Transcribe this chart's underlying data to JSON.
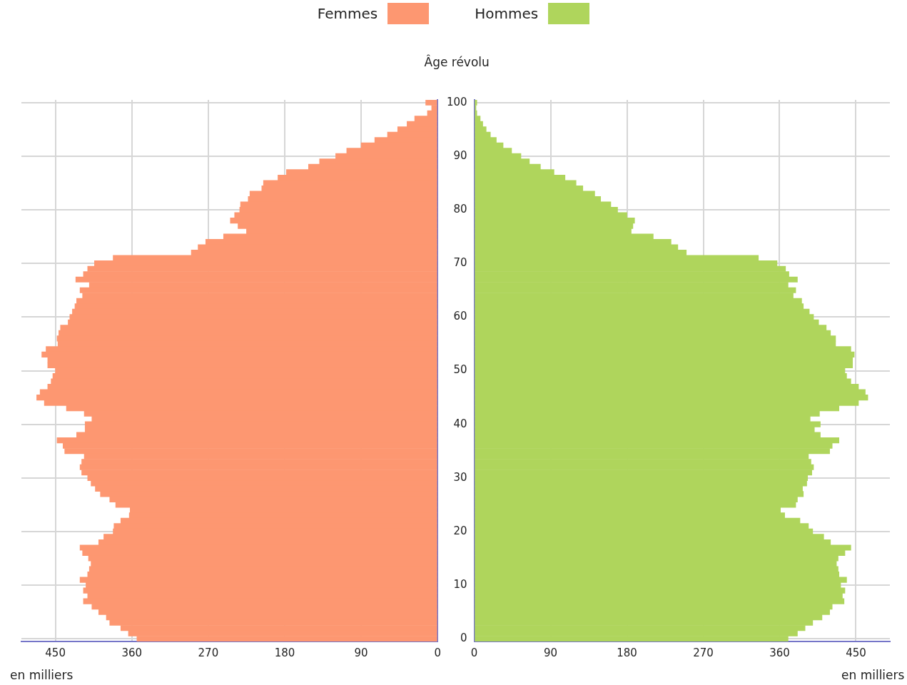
{
  "chart_data": [
    {
      "type": "bar",
      "orientation": "horizontal",
      "legend": "top",
      "xlabel": "en milliers",
      "tick_labels": "x",
      "grid": true,
      "categories": [
        "100",
        null,
        null,
        null,
        null,
        null,
        null,
        null,
        null,
        null,
        "90",
        null,
        null,
        null,
        null,
        null,
        null,
        null,
        null,
        null,
        "80",
        null,
        null,
        null,
        null,
        null,
        null,
        null,
        null,
        null,
        "70",
        null,
        null,
        null,
        null,
        null,
        null,
        null,
        null,
        null,
        "60",
        null,
        null,
        null,
        null,
        null,
        null,
        null,
        null,
        null,
        "50",
        null,
        null,
        null,
        null,
        null,
        null,
        null,
        null,
        null,
        "40",
        null,
        null,
        null,
        null,
        null,
        null,
        null,
        null,
        null,
        "30",
        null,
        null,
        null,
        null,
        null,
        null,
        null,
        null,
        null,
        "20",
        null,
        null,
        null,
        null,
        null,
        null,
        null,
        null,
        null,
        "10",
        null,
        null,
        null,
        null,
        null,
        null,
        null,
        null,
        null,
        "0"
      ],
      "xlim": [
        490,
        0
      ],
      "xticks": [
        450,
        360,
        270,
        180,
        90,
        0
      ],
      "series": [
        {
          "name": "Femmes",
          "color": "#fd9771",
          "values": [
            14,
            7,
            12,
            27,
            36,
            47,
            59,
            74,
            90,
            107,
            120,
            139,
            152,
            178,
            188,
            205,
            207,
            221,
            223,
            232,
            233,
            239,
            244,
            235,
            225,
            252,
            273,
            282,
            290,
            382,
            404,
            412,
            417,
            426,
            410,
            421,
            418,
            425,
            427,
            430,
            433,
            435,
            444,
            446,
            448,
            447,
            461,
            466,
            459,
            459,
            450,
            453,
            455,
            459,
            468,
            472,
            463,
            437,
            416,
            407,
            415,
            415,
            425,
            448,
            441,
            439,
            416,
            419,
            421,
            419,
            412,
            408,
            403,
            397,
            386,
            379,
            362,
            363,
            373,
            381,
            382,
            393,
            399,
            421,
            418,
            411,
            408,
            410,
            412,
            421,
            414,
            417,
            412,
            417,
            407,
            399,
            390,
            386,
            373,
            364,
            354
          ]
        }
      ]
    },
    {
      "type": "bar",
      "orientation": "horizontal",
      "legend": "top",
      "xlabel": "en milliers",
      "ylabel": "Âge révolu",
      "grid": true,
      "categories": [
        "100",
        null,
        null,
        null,
        null,
        null,
        null,
        null,
        null,
        null,
        "90",
        null,
        null,
        null,
        null,
        null,
        null,
        null,
        null,
        null,
        "80",
        null,
        null,
        null,
        null,
        null,
        null,
        null,
        null,
        null,
        "70",
        null,
        null,
        null,
        null,
        null,
        null,
        null,
        null,
        null,
        "60",
        null,
        null,
        null,
        null,
        null,
        null,
        null,
        null,
        null,
        "50",
        null,
        null,
        null,
        null,
        null,
        null,
        null,
        null,
        null,
        "40",
        null,
        null,
        null,
        null,
        null,
        null,
        null,
        null,
        null,
        "30",
        null,
        null,
        null,
        null,
        null,
        null,
        null,
        null,
        null,
        "20",
        null,
        null,
        null,
        null,
        null,
        null,
        null,
        null,
        null,
        "10",
        null,
        null,
        null,
        null,
        null,
        null,
        null,
        null,
        null,
        "0"
      ],
      "xlim": [
        0,
        490
      ],
      "xticks": [
        0,
        90,
        180,
        270,
        360,
        450
      ],
      "series": [
        {
          "name": "Hommes",
          "color": "#afd55c",
          "values": [
            3,
            2,
            3,
            7,
            10,
            14,
            19,
            26,
            34,
            44,
            55,
            65,
            78,
            94,
            107,
            120,
            128,
            142,
            149,
            161,
            169,
            180,
            189,
            187,
            185,
            211,
            232,
            240,
            250,
            335,
            357,
            367,
            371,
            381,
            370,
            379,
            376,
            386,
            388,
            395,
            400,
            406,
            415,
            420,
            426,
            426,
            444,
            448,
            446,
            446,
            437,
            439,
            444,
            453,
            461,
            464,
            453,
            430,
            407,
            396,
            408,
            401,
            408,
            430,
            422,
            419,
            394,
            397,
            400,
            398,
            393,
            392,
            387,
            388,
            381,
            379,
            361,
            366,
            384,
            394,
            399,
            412,
            420,
            444,
            437,
            429,
            427,
            429,
            430,
            439,
            432,
            437,
            434,
            436,
            422,
            419,
            410,
            399,
            390,
            381,
            370
          ]
        }
      ]
    }
  ]
}
